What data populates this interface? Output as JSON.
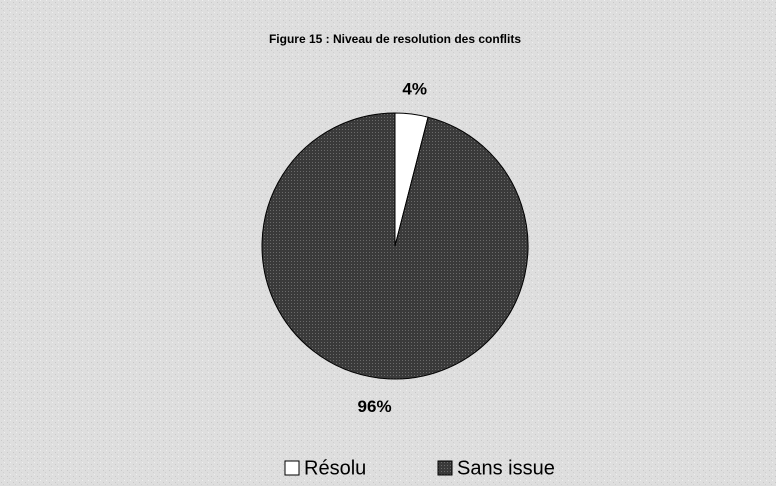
{
  "chart_data": {
    "type": "pie",
    "title": "Figure 15 : Niveau de resolution des conflits",
    "categories": [
      "Résolu",
      "Sans issue"
    ],
    "values": [
      4,
      96
    ],
    "value_labels": [
      "4%",
      "96%"
    ],
    "colors": [
      "#ffffff",
      "#3a3a3a"
    ],
    "legend": "bottom"
  }
}
